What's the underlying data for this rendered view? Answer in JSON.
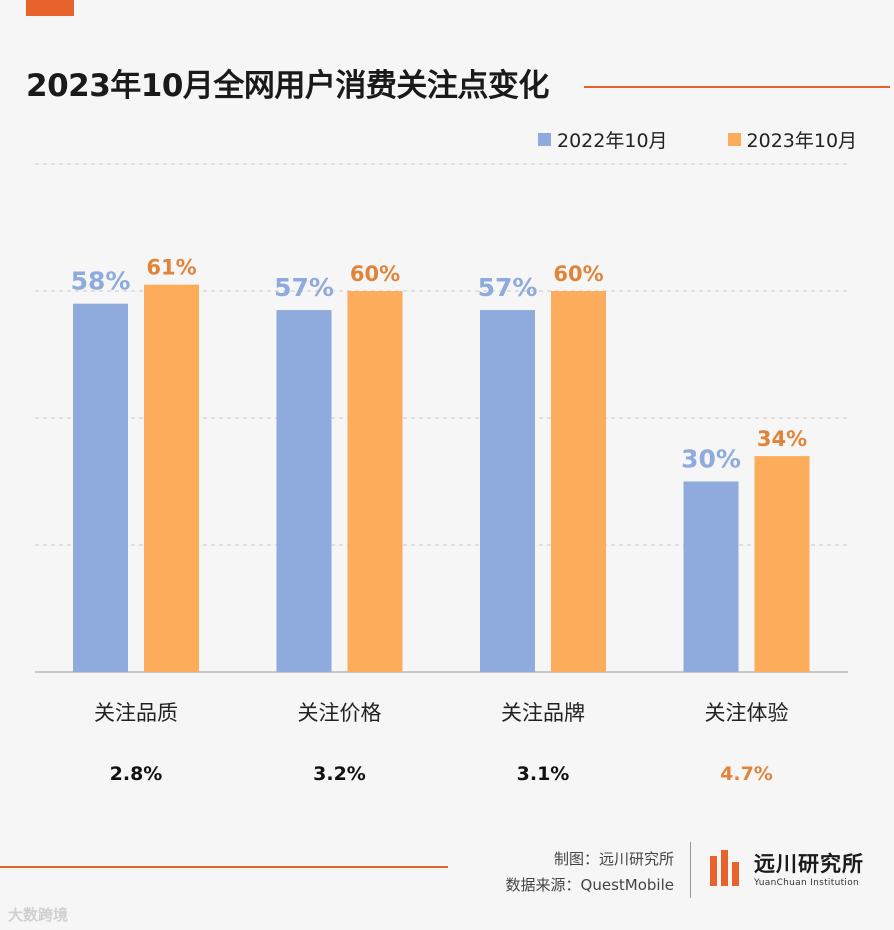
{
  "title": "2023年10月全网用户消费关注点变化",
  "legend": [
    {
      "label": "2022年10月",
      "color": "#8faadc"
    },
    {
      "label": "2023年10月",
      "color": "#fcac5a"
    }
  ],
  "chart_data": {
    "type": "bar",
    "title": "2023年10月全网用户消费关注点变化",
    "categories": [
      "关注品质",
      "关注价格",
      "关注品牌",
      "关注体验"
    ],
    "series": [
      {
        "name": "2022年10月",
        "values": [
          58,
          57,
          57,
          30
        ],
        "labels": [
          "58%",
          "57%",
          "57%",
          "30%"
        ],
        "color": "#8faadc",
        "label_color": "#8faadc"
      },
      {
        "name": "2023年10月",
        "values": [
          61,
          60,
          60,
          34
        ],
        "labels": [
          "61%",
          "60%",
          "60%",
          "34%"
        ],
        "color": "#fcac5a",
        "label_color": "#e1843b"
      }
    ],
    "growth": [
      "2.8%",
      "3.2%",
      "3.1%",
      "4.7%"
    ],
    "growth_colors": [
      "#111111",
      "#111111",
      "#111111",
      "#e1843b"
    ],
    "ylim": [
      0,
      80
    ],
    "grid": true,
    "xlabel": "",
    "ylabel": ""
  },
  "credits": {
    "made_by": "制图：远川研究所",
    "source": "数据来源：QuestMobile"
  },
  "logo": {
    "cn": "远川研究所",
    "en": "YuanChuan Institution"
  },
  "watermark": "大数跨境"
}
